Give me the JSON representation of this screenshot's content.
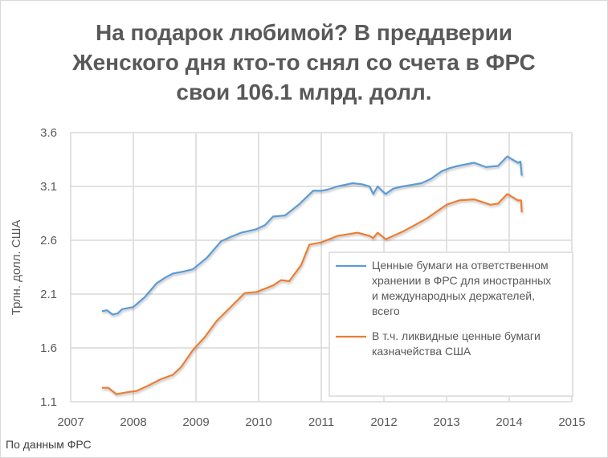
{
  "chart_data": {
    "type": "line",
    "title_lines": [
      "На подарок любимой? В преддверии",
      "Женского дня кто-то снял со счета в ФРС",
      "свои 106.1 млрд. долл."
    ],
    "xlabel": "",
    "ylabel": "Трлн. долл. США",
    "xlim": [
      2007,
      2015
    ],
    "ylim": [
      1.1,
      3.6
    ],
    "x_ticks": [
      2007,
      2008,
      2009,
      2010,
      2011,
      2012,
      2013,
      2014,
      2015
    ],
    "y_ticks": [
      "1.1",
      "1.6",
      "2.1",
      "2.6",
      "3.1",
      "3.6"
    ],
    "grid": true,
    "legend_position": "right",
    "series": [
      {
        "name": "Ценные бумаги на ответственном хранении в ФРС для иностранных и международных держателей, всего",
        "legend_lines": [
          "Ценные бумаги на ответственном",
          "хранении в ФРС для иностранных",
          "и международных держателей,",
          "всего"
        ],
        "color": "#5b9bd5",
        "points": [
          [
            2007.5,
            1.94
          ],
          [
            2007.58,
            1.95
          ],
          [
            2007.67,
            1.91
          ],
          [
            2007.75,
            1.92
          ],
          [
            2007.82,
            1.96
          ],
          [
            2008.0,
            1.98
          ],
          [
            2008.18,
            2.07
          ],
          [
            2008.37,
            2.2
          ],
          [
            2008.5,
            2.25
          ],
          [
            2008.63,
            2.29
          ],
          [
            2008.8,
            2.31
          ],
          [
            2008.95,
            2.33
          ],
          [
            2009.18,
            2.44
          ],
          [
            2009.4,
            2.59
          ],
          [
            2009.55,
            2.63
          ],
          [
            2009.72,
            2.67
          ],
          [
            2009.95,
            2.7
          ],
          [
            2010.1,
            2.74
          ],
          [
            2010.23,
            2.82
          ],
          [
            2010.42,
            2.83
          ],
          [
            2010.64,
            2.93
          ],
          [
            2010.87,
            3.06
          ],
          [
            2011.0,
            3.06
          ],
          [
            2011.1,
            3.07
          ],
          [
            2011.26,
            3.1
          ],
          [
            2011.5,
            3.13
          ],
          [
            2011.65,
            3.12
          ],
          [
            2011.77,
            3.1
          ],
          [
            2011.83,
            3.03
          ],
          [
            2011.9,
            3.1
          ],
          [
            2011.97,
            3.06
          ],
          [
            2012.03,
            3.03
          ],
          [
            2012.15,
            3.08
          ],
          [
            2012.3,
            3.1
          ],
          [
            2012.6,
            3.13
          ],
          [
            2012.75,
            3.17
          ],
          [
            2012.92,
            3.24
          ],
          [
            2013.05,
            3.27
          ],
          [
            2013.18,
            3.29
          ],
          [
            2013.44,
            3.32
          ],
          [
            2013.63,
            3.28
          ],
          [
            2013.82,
            3.29
          ],
          [
            2013.97,
            3.38
          ],
          [
            2014.05,
            3.35
          ],
          [
            2014.14,
            3.32
          ],
          [
            2014.18,
            3.33
          ],
          [
            2014.2,
            3.2
          ]
        ]
      },
      {
        "name": "В т.ч. ликвидные ценные бумаги казначейства США",
        "legend_lines": [
          "В т.ч. ликвидные ценные бумаги",
          "казначейства США"
        ],
        "color": "#ed7d31",
        "points": [
          [
            2007.5,
            1.23
          ],
          [
            2007.6,
            1.23
          ],
          [
            2007.73,
            1.17
          ],
          [
            2007.92,
            1.19
          ],
          [
            2008.05,
            1.2
          ],
          [
            2008.24,
            1.25
          ],
          [
            2008.44,
            1.31
          ],
          [
            2008.63,
            1.35
          ],
          [
            2008.76,
            1.42
          ],
          [
            2008.95,
            1.58
          ],
          [
            2009.14,
            1.7
          ],
          [
            2009.33,
            1.85
          ],
          [
            2009.59,
            2.0
          ],
          [
            2009.78,
            2.11
          ],
          [
            2009.97,
            2.12
          ],
          [
            2010.23,
            2.18
          ],
          [
            2010.36,
            2.23
          ],
          [
            2010.49,
            2.22
          ],
          [
            2010.68,
            2.37
          ],
          [
            2010.81,
            2.56
          ],
          [
            2011.0,
            2.58
          ],
          [
            2011.26,
            2.64
          ],
          [
            2011.58,
            2.67
          ],
          [
            2011.77,
            2.64
          ],
          [
            2011.83,
            2.62
          ],
          [
            2011.9,
            2.67
          ],
          [
            2012.03,
            2.61
          ],
          [
            2012.3,
            2.68
          ],
          [
            2012.68,
            2.8
          ],
          [
            2013.0,
            2.93
          ],
          [
            2013.2,
            2.97
          ],
          [
            2013.44,
            2.98
          ],
          [
            2013.7,
            2.93
          ],
          [
            2013.82,
            2.94
          ],
          [
            2013.97,
            3.03
          ],
          [
            2014.14,
            2.97
          ],
          [
            2014.19,
            2.97
          ],
          [
            2014.2,
            2.86
          ]
        ]
      }
    ],
    "footnote": "По данным ФРС"
  }
}
